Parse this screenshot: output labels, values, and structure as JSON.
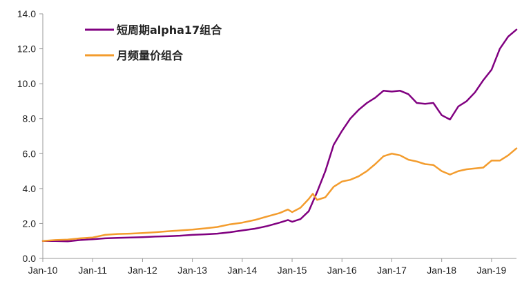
{
  "chart_data": {
    "type": "line",
    "title": "",
    "xlabel": "",
    "ylabel": "",
    "x_ticks": [
      "Jan-10",
      "Jan-11",
      "Jan-12",
      "Jan-13",
      "Jan-14",
      "Jan-15",
      "Jan-16",
      "Jan-17",
      "Jan-18",
      "Jan-19"
    ],
    "y_ticks": [
      "0.0",
      "2.0",
      "4.0",
      "6.0",
      "8.0",
      "10.0",
      "12.0",
      "14.0"
    ],
    "xlim": [
      "2010-01",
      "2019-07"
    ],
    "ylim": [
      0,
      14
    ],
    "grid": false,
    "legend_position": "top-left",
    "series": [
      {
        "name": "短周期alpha17组合",
        "color": "#800080",
        "points": [
          [
            "2010-01",
            1.0
          ],
          [
            "2010-04",
            1.0
          ],
          [
            "2010-07",
            0.98
          ],
          [
            "2010-10",
            1.05
          ],
          [
            "2011-01",
            1.1
          ],
          [
            "2011-04",
            1.15
          ],
          [
            "2011-07",
            1.18
          ],
          [
            "2011-10",
            1.2
          ],
          [
            "2012-01",
            1.22
          ],
          [
            "2012-04",
            1.25
          ],
          [
            "2012-07",
            1.27
          ],
          [
            "2012-10",
            1.3
          ],
          [
            "2013-01",
            1.35
          ],
          [
            "2013-04",
            1.38
          ],
          [
            "2013-07",
            1.42
          ],
          [
            "2013-10",
            1.5
          ],
          [
            "2014-01",
            1.6
          ],
          [
            "2014-04",
            1.7
          ],
          [
            "2014-07",
            1.85
          ],
          [
            "2014-10",
            2.05
          ],
          [
            "2014-12",
            2.2
          ],
          [
            "2015-01",
            2.1
          ],
          [
            "2015-03",
            2.25
          ],
          [
            "2015-05",
            2.7
          ],
          [
            "2015-07",
            3.8
          ],
          [
            "2015-09",
            5.0
          ],
          [
            "2015-11",
            6.5
          ],
          [
            "2016-01",
            7.3
          ],
          [
            "2016-03",
            8.0
          ],
          [
            "2016-05",
            8.5
          ],
          [
            "2016-07",
            8.9
          ],
          [
            "2016-09",
            9.2
          ],
          [
            "2016-11",
            9.6
          ],
          [
            "2017-01",
            9.55
          ],
          [
            "2017-03",
            9.6
          ],
          [
            "2017-05",
            9.4
          ],
          [
            "2017-07",
            8.9
          ],
          [
            "2017-09",
            8.85
          ],
          [
            "2017-11",
            8.9
          ],
          [
            "2018-01",
            8.2
          ],
          [
            "2018-03",
            7.95
          ],
          [
            "2018-05",
            8.7
          ],
          [
            "2018-07",
            9.0
          ],
          [
            "2018-09",
            9.5
          ],
          [
            "2018-11",
            10.2
          ],
          [
            "2019-01",
            10.8
          ],
          [
            "2019-03",
            12.0
          ],
          [
            "2019-05",
            12.7
          ],
          [
            "2019-07",
            13.1
          ]
        ]
      },
      {
        "name": "月频量价组合",
        "color": "#F39C2D",
        "points": [
          [
            "2010-01",
            1.0
          ],
          [
            "2010-04",
            1.05
          ],
          [
            "2010-07",
            1.08
          ],
          [
            "2010-10",
            1.15
          ],
          [
            "2011-01",
            1.2
          ],
          [
            "2011-04",
            1.35
          ],
          [
            "2011-07",
            1.4
          ],
          [
            "2011-10",
            1.42
          ],
          [
            "2012-01",
            1.45
          ],
          [
            "2012-04",
            1.5
          ],
          [
            "2012-07",
            1.55
          ],
          [
            "2012-10",
            1.6
          ],
          [
            "2013-01",
            1.65
          ],
          [
            "2013-04",
            1.72
          ],
          [
            "2013-07",
            1.8
          ],
          [
            "2013-10",
            1.95
          ],
          [
            "2014-01",
            2.05
          ],
          [
            "2014-04",
            2.2
          ],
          [
            "2014-07",
            2.4
          ],
          [
            "2014-10",
            2.6
          ],
          [
            "2014-12",
            2.8
          ],
          [
            "2015-01",
            2.65
          ],
          [
            "2015-03",
            2.9
          ],
          [
            "2015-05",
            3.4
          ],
          [
            "2015-06",
            3.7
          ],
          [
            "2015-07",
            3.35
          ],
          [
            "2015-09",
            3.5
          ],
          [
            "2015-11",
            4.1
          ],
          [
            "2016-01",
            4.4
          ],
          [
            "2016-03",
            4.5
          ],
          [
            "2016-05",
            4.7
          ],
          [
            "2016-07",
            5.0
          ],
          [
            "2016-09",
            5.4
          ],
          [
            "2016-11",
            5.85
          ],
          [
            "2017-01",
            6.0
          ],
          [
            "2017-03",
            5.9
          ],
          [
            "2017-05",
            5.65
          ],
          [
            "2017-07",
            5.55
          ],
          [
            "2017-09",
            5.4
          ],
          [
            "2017-11",
            5.35
          ],
          [
            "2018-01",
            5.0
          ],
          [
            "2018-03",
            4.8
          ],
          [
            "2018-05",
            5.0
          ],
          [
            "2018-07",
            5.1
          ],
          [
            "2018-09",
            5.15
          ],
          [
            "2018-11",
            5.2
          ],
          [
            "2019-01",
            5.6
          ],
          [
            "2019-03",
            5.6
          ],
          [
            "2019-05",
            5.9
          ],
          [
            "2019-07",
            6.3
          ]
        ]
      }
    ]
  }
}
